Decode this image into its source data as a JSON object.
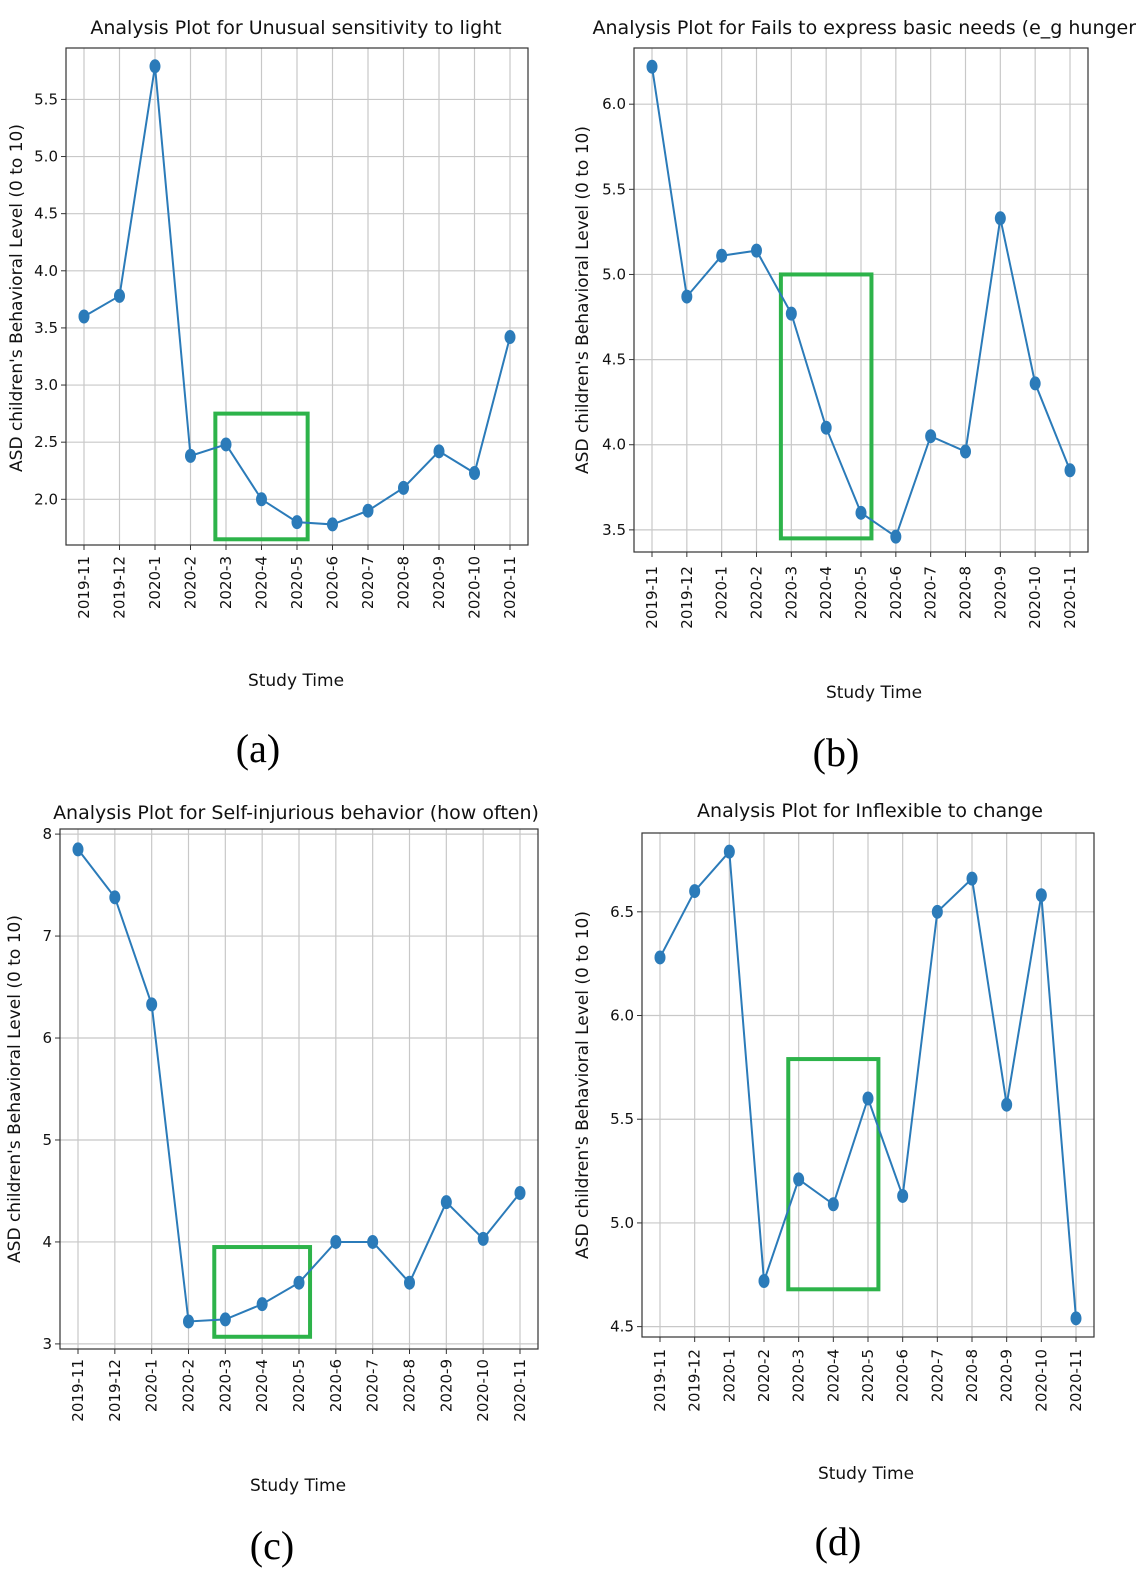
{
  "colors": {
    "series": "#2b7bb9",
    "highlight": "#2db34a",
    "grid": "#c8c8c8"
  },
  "chart_data": [
    {
      "type": "line",
      "title": "Analysis Plot for Unusual sensitivity to light",
      "xlabel": "Study Time",
      "ylabel": "ASD children's Behavioral Level (0 to 10)",
      "caption": "(a)",
      "categories": [
        "2019-11",
        "2019-12",
        "2020-1",
        "2020-2",
        "2020-3",
        "2020-4",
        "2020-5",
        "2020-6",
        "2020-7",
        "2020-8",
        "2020-9",
        "2020-10",
        "2020-11"
      ],
      "values": [
        3.6,
        3.78,
        5.79,
        2.38,
        2.48,
        2.0,
        1.8,
        1.78,
        1.9,
        2.1,
        2.42,
        2.23,
        3.42
      ],
      "ylim": [
        1.6,
        5.95
      ],
      "yticks": [
        "2.0",
        "2.5",
        "3.0",
        "3.5",
        "4.0",
        "4.5",
        "5.0",
        "5.5"
      ],
      "grid": true,
      "highlight": {
        "x_from": "2020-3",
        "x_to": "2020-5",
        "y_range": [
          1.65,
          2.75
        ]
      }
    },
    {
      "type": "line",
      "title": "Analysis Plot for Fails to express basic needs (e_g hunger)",
      "xlabel": "Study Time",
      "ylabel": "ASD children's Behavioral Level (0 to 10)",
      "caption": "(b)",
      "categories": [
        "2019-11",
        "2019-12",
        "2020-1",
        "2020-2",
        "2020-3",
        "2020-4",
        "2020-5",
        "2020-6",
        "2020-7",
        "2020-8",
        "2020-9",
        "2020-10",
        "2020-11"
      ],
      "values": [
        6.22,
        4.87,
        5.11,
        5.14,
        4.77,
        4.1,
        3.6,
        3.46,
        4.05,
        3.96,
        5.33,
        4.36,
        3.85
      ],
      "ylim": [
        3.37,
        6.33
      ],
      "yticks": [
        "3.5",
        "4.0",
        "4.5",
        "5.0",
        "5.5",
        "6.0"
      ],
      "grid": true,
      "highlight": {
        "x_from": "2020-3",
        "x_to": "2020-5",
        "y_range": [
          3.45,
          5.0
        ]
      }
    },
    {
      "type": "line",
      "title": "Analysis Plot for Self-injurious  behavior (how often)",
      "xlabel": "Study Time",
      "ylabel": "ASD children's Behavioral Level (0 to 10)",
      "caption": "(c)",
      "categories": [
        "2019-11",
        "2019-12",
        "2020-1",
        "2020-2",
        "2020-3",
        "2020-4",
        "2020-5",
        "2020-6",
        "2020-7",
        "2020-8",
        "2020-9",
        "2020-10",
        "2020-11"
      ],
      "values": [
        7.85,
        7.38,
        6.33,
        3.22,
        3.24,
        3.39,
        3.6,
        4.0,
        4.0,
        3.6,
        4.39,
        4.03,
        4.48
      ],
      "ylim": [
        2.95,
        8.05
      ],
      "yticks": [
        "3",
        "4",
        "5",
        "6",
        "7",
        "8"
      ],
      "grid": true,
      "highlight": {
        "x_from": "2020-3",
        "x_to": "2020-5",
        "y_range": [
          3.07,
          3.95
        ]
      }
    },
    {
      "type": "line",
      "title": "Analysis Plot for Inflexible to change",
      "xlabel": "Study Time",
      "ylabel": "ASD children's Behavioral Level (0 to 10)",
      "caption": "(d)",
      "categories": [
        "2019-11",
        "2019-12",
        "2020-1",
        "2020-2",
        "2020-3",
        "2020-4",
        "2020-5",
        "2020-6",
        "2020-7",
        "2020-8",
        "2020-9",
        "2020-10",
        "2020-11"
      ],
      "values": [
        6.28,
        6.6,
        6.79,
        4.72,
        5.21,
        5.09,
        5.6,
        5.13,
        6.5,
        6.66,
        5.57,
        6.58,
        4.54
      ],
      "ylim": [
        4.45,
        6.88
      ],
      "yticks": [
        "4.5",
        "5.0",
        "5.5",
        "6.0",
        "6.5"
      ],
      "grid": true,
      "highlight": {
        "x_from": "2020-3",
        "x_to": "2020-5",
        "y_range": [
          4.68,
          5.79
        ]
      }
    }
  ]
}
